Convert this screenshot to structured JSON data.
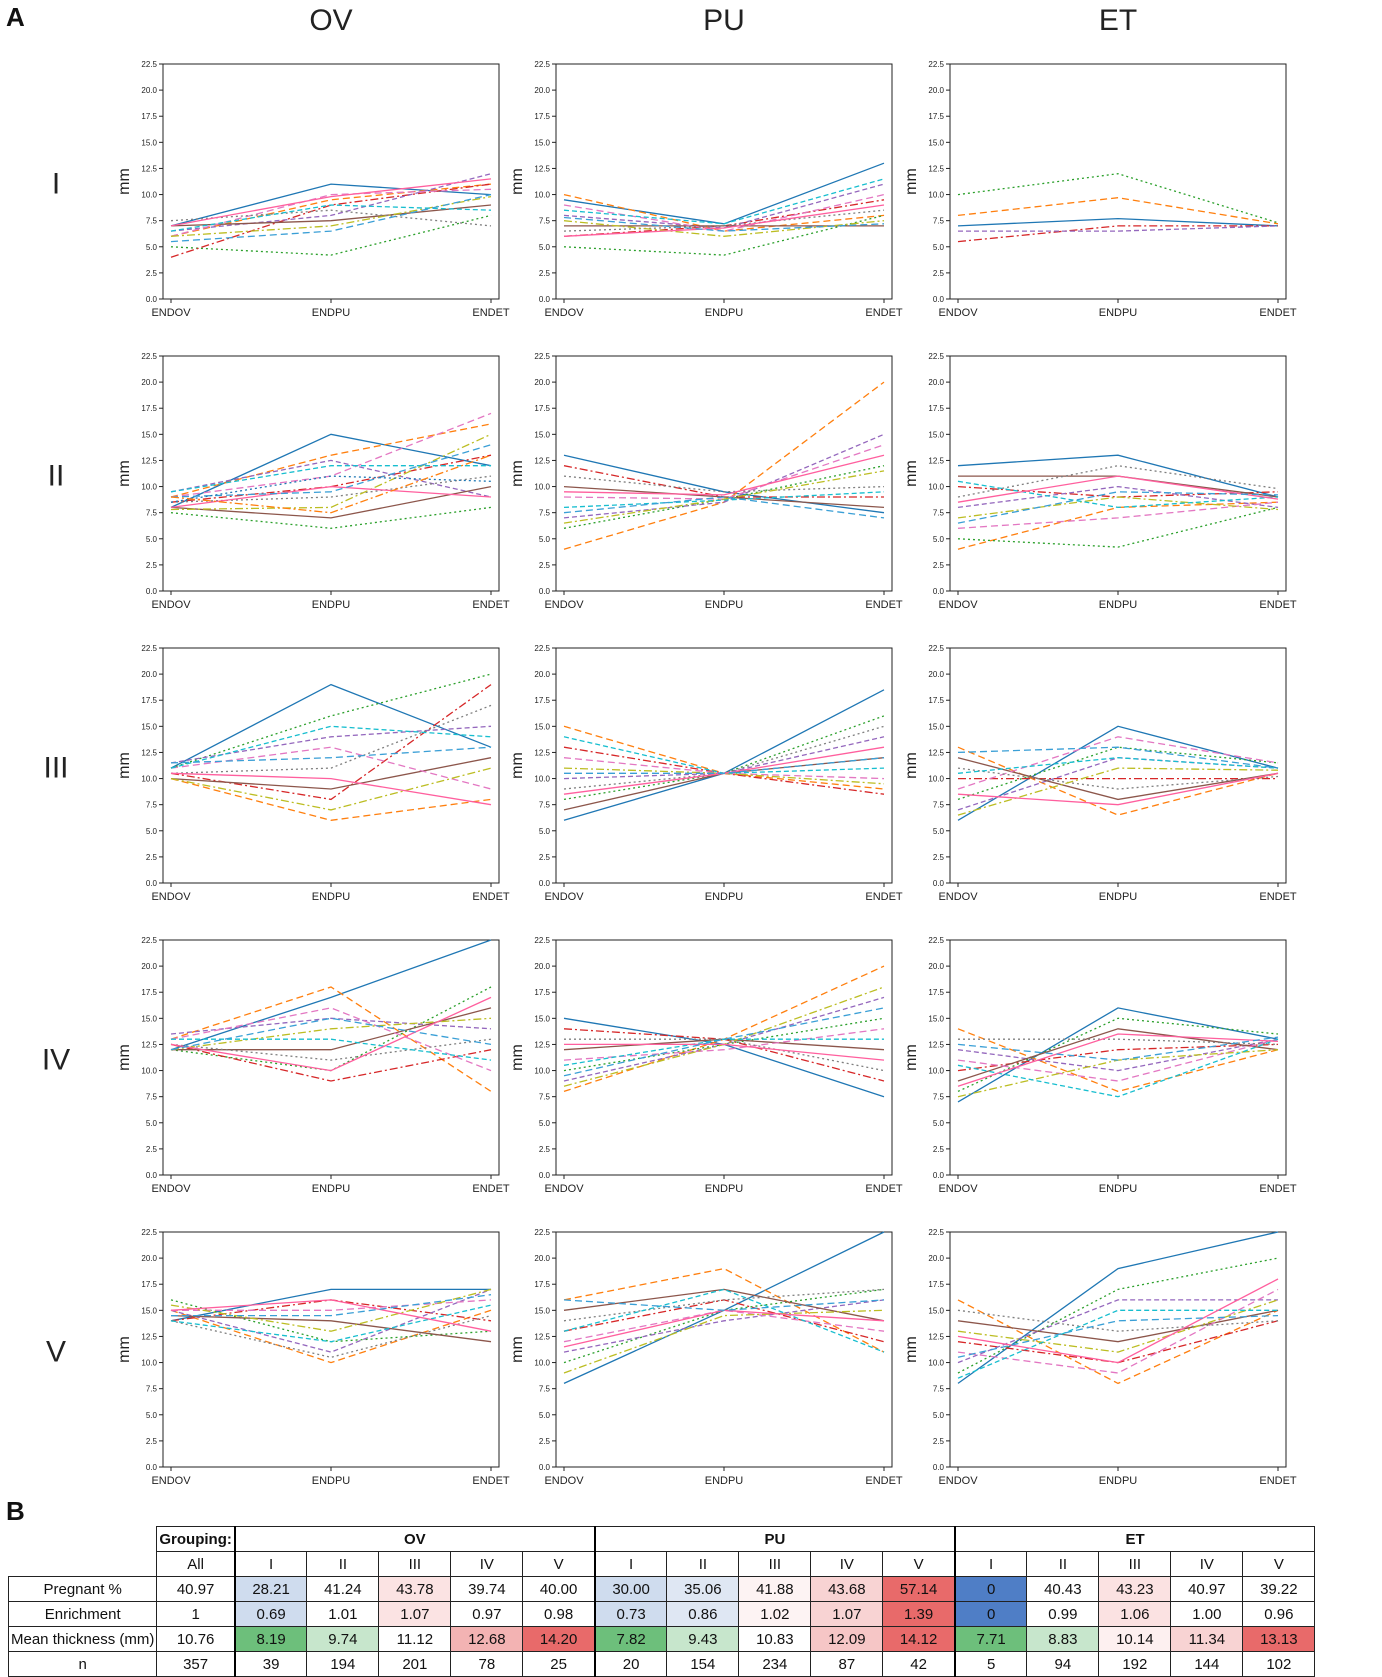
{
  "panel_a_label": "A",
  "panel_b_label": "B",
  "columns": [
    "OV",
    "PU",
    "ET"
  ],
  "rows": [
    "I",
    "II",
    "III",
    "IV",
    "V"
  ],
  "series_colors": [
    "#1f77b4",
    "#ff7f0e",
    "#2ca02c",
    "#d62728",
    "#9467bd",
    "#8c564b",
    "#e377c2",
    "#7f7f7f",
    "#bcbd22",
    "#17becf",
    "#ff5f9e",
    "#3a9fd6"
  ],
  "chart_data": {
    "type": "line",
    "description_of_layout": "grid",
    "x": [
      "ENDOV",
      "ENDPU",
      "ENDET"
    ],
    "ylabel": "mm",
    "ylim": [
      0,
      22.5
    ],
    "yticks": [
      "0.0",
      "2.5",
      "5.0",
      "7.5",
      "10.0",
      "12.5",
      "15.0",
      "17.5",
      "20.0",
      "22.5"
    ],
    "panels": [
      {
        "column": "OV",
        "row": "I",
        "series": [
          [
            7,
            11,
            10
          ],
          [
            6,
            9.5,
            11
          ],
          [
            5,
            4.2,
            8
          ],
          [
            4,
            9,
            11
          ],
          [
            6.5,
            8,
            12
          ],
          [
            7,
            7.5,
            9
          ],
          [
            6,
            10,
            10.5
          ],
          [
            7.5,
            8.5,
            7
          ],
          [
            6,
            7,
            9.8
          ],
          [
            6.5,
            9,
            8.5
          ],
          [
            7,
            9.8,
            11.5
          ],
          [
            5.5,
            6.5,
            10
          ]
        ]
      },
      {
        "column": "PU",
        "row": "I",
        "series": [
          [
            9.5,
            7.2,
            13
          ],
          [
            10,
            6.5,
            8
          ],
          [
            5,
            4.2,
            8
          ],
          [
            6,
            7,
            9.5
          ],
          [
            8,
            6.8,
            11
          ],
          [
            7,
            7,
            7
          ],
          [
            9,
            6.5,
            10
          ],
          [
            6.5,
            7,
            8.5
          ],
          [
            7.5,
            6,
            7.5
          ],
          [
            8.5,
            7.2,
            11.5
          ],
          [
            6,
            6.8,
            9
          ],
          [
            7.8,
            6.5,
            7.2
          ]
        ]
      },
      {
        "column": "ET",
        "row": "I",
        "series": [
          [
            7,
            7.7,
            7
          ],
          [
            8,
            9.7,
            7.2
          ],
          [
            10,
            12,
            7.3
          ],
          [
            5.5,
            7,
            7
          ],
          [
            6.5,
            6.5,
            7
          ]
        ]
      },
      {
        "column": "OV",
        "row": "II",
        "series": [
          [
            8,
            15,
            12
          ],
          [
            9,
            13,
            16
          ],
          [
            7.5,
            6,
            8
          ],
          [
            8.5,
            10,
            13
          ],
          [
            9.5,
            12.5,
            9
          ],
          [
            8,
            7,
            10
          ],
          [
            9,
            11,
            17
          ],
          [
            8.5,
            9,
            11
          ],
          [
            7.8,
            8,
            15
          ],
          [
            9.5,
            12,
            12
          ],
          [
            8,
            10,
            9
          ],
          [
            9,
            9.5,
            14
          ],
          [
            8.5,
            11,
            10.5
          ],
          [
            9,
            7.5,
            13
          ]
        ]
      },
      {
        "column": "PU",
        "row": "II",
        "series": [
          [
            13,
            9.5,
            7.5
          ],
          [
            4,
            8.5,
            20
          ],
          [
            6,
            8.8,
            12
          ],
          [
            12,
            9,
            9
          ],
          [
            7,
            8.5,
            15
          ],
          [
            10,
            9,
            8
          ],
          [
            9,
            8.8,
            14
          ],
          [
            11,
            9.5,
            10
          ],
          [
            6.5,
            8.8,
            11.5
          ],
          [
            8,
            8.7,
            9.5
          ],
          [
            9.5,
            9.2,
            13
          ],
          [
            7.5,
            9,
            7
          ]
        ]
      },
      {
        "column": "ET",
        "row": "II",
        "series": [
          [
            12,
            13,
            9
          ],
          [
            4,
            8,
            8.5
          ],
          [
            5,
            4.2,
            8
          ],
          [
            10,
            9,
            9.5
          ],
          [
            8,
            10,
            8
          ],
          [
            11,
            11,
            9
          ],
          [
            6,
            7,
            8.5
          ],
          [
            9,
            12,
            9.8
          ],
          [
            7,
            9,
            7.8
          ],
          [
            10.5,
            8,
            9
          ],
          [
            8.5,
            11,
            8.8
          ],
          [
            6.5,
            9.5,
            9.2
          ]
        ]
      },
      {
        "column": "OV",
        "row": "III",
        "series": [
          [
            11,
            19,
            13
          ],
          [
            10,
            6,
            8
          ],
          [
            11,
            16,
            20
          ],
          [
            10.5,
            8,
            19
          ],
          [
            11.5,
            14,
            15
          ],
          [
            10,
            9,
            12
          ],
          [
            11,
            13,
            9
          ],
          [
            10.5,
            11,
            17
          ],
          [
            10,
            7,
            11
          ],
          [
            11,
            15,
            14
          ],
          [
            10.5,
            10,
            7.5
          ],
          [
            11.5,
            12,
            13
          ]
        ]
      },
      {
        "column": "PU",
        "row": "III",
        "series": [
          [
            6,
            10.5,
            18.5
          ],
          [
            15,
            10.5,
            9
          ],
          [
            8,
            10.5,
            16
          ],
          [
            13,
            10.5,
            8.5
          ],
          [
            10,
            10.5,
            14
          ],
          [
            7,
            10.5,
            12
          ],
          [
            12,
            10.5,
            10
          ],
          [
            9,
            10.5,
            15
          ],
          [
            11,
            10.5,
            9.5
          ],
          [
            14,
            10.5,
            11
          ],
          [
            8.5,
            10.5,
            13
          ],
          [
            10.5,
            10.5,
            12
          ]
        ]
      },
      {
        "column": "ET",
        "row": "III",
        "series": [
          [
            6,
            15,
            11
          ],
          [
            13,
            6.5,
            10.5
          ],
          [
            8,
            13,
            11.5
          ],
          [
            10,
            10,
            10
          ],
          [
            7,
            12,
            11
          ],
          [
            12,
            8,
            10.5
          ],
          [
            9,
            14,
            11.5
          ],
          [
            11,
            9,
            10.2
          ],
          [
            6.5,
            11,
            10.8
          ],
          [
            10.5,
            12,
            11
          ],
          [
            8.5,
            7.5,
            10.5
          ],
          [
            12.5,
            13,
            11
          ]
        ]
      },
      {
        "column": "OV",
        "row": "IV",
        "series": [
          [
            12,
            17,
            23
          ],
          [
            13,
            18,
            8
          ],
          [
            12,
            10,
            18
          ],
          [
            12.5,
            9,
            12
          ],
          [
            13.5,
            15,
            14
          ],
          [
            12,
            12,
            16
          ],
          [
            13,
            16,
            10
          ],
          [
            12.5,
            11,
            13
          ],
          [
            12,
            14,
            15
          ],
          [
            13,
            13,
            11
          ],
          [
            12.5,
            10,
            17
          ],
          [
            12,
            15,
            12.5
          ]
        ]
      },
      {
        "column": "PU",
        "row": "IV",
        "series": [
          [
            15,
            12.5,
            7.5
          ],
          [
            8,
            13,
            20
          ],
          [
            10,
            12.5,
            15
          ],
          [
            14,
            13,
            9
          ],
          [
            9,
            12.5,
            17
          ],
          [
            12,
            13,
            12
          ],
          [
            11,
            12,
            14
          ],
          [
            13,
            13,
            10
          ],
          [
            8.5,
            12.5,
            18
          ],
          [
            10.5,
            13,
            13
          ],
          [
            12.5,
            12.5,
            11
          ],
          [
            9.5,
            13,
            16
          ]
        ]
      },
      {
        "column": "ET",
        "row": "IV",
        "series": [
          [
            7,
            16,
            13
          ],
          [
            14,
            8,
            12
          ],
          [
            8,
            15,
            13.5
          ],
          [
            10,
            12,
            12.5
          ],
          [
            12,
            10,
            13
          ],
          [
            9,
            14,
            12
          ],
          [
            11,
            9,
            13
          ],
          [
            13,
            13,
            12.5
          ],
          [
            7.5,
            11,
            12
          ],
          [
            10.5,
            7.5,
            13
          ],
          [
            8.5,
            13.5,
            12.8
          ],
          [
            12.5,
            11,
            13.2
          ]
        ]
      },
      {
        "column": "OV",
        "row": "V",
        "series": [
          [
            14,
            17,
            17
          ],
          [
            15,
            10,
            15
          ],
          [
            16,
            12,
            13
          ],
          [
            14,
            16,
            14
          ],
          [
            15,
            11,
            17
          ],
          [
            14.5,
            14,
            12
          ],
          [
            15,
            15,
            16
          ],
          [
            14,
            10.5,
            14.5
          ],
          [
            15.5,
            13,
            17
          ],
          [
            14,
            12,
            15.5
          ],
          [
            15,
            16,
            13
          ],
          [
            14.5,
            14.5,
            16.5
          ]
        ]
      },
      {
        "column": "PU",
        "row": "V",
        "series": [
          [
            8,
            15,
            23
          ],
          [
            16,
            19,
            11
          ],
          [
            10,
            15,
            17
          ],
          [
            13,
            16,
            12
          ],
          [
            11,
            14,
            16
          ],
          [
            15,
            17,
            14
          ],
          [
            12,
            15,
            13
          ],
          [
            14,
            16,
            17
          ],
          [
            9,
            14.5,
            15
          ],
          [
            13,
            17,
            11
          ],
          [
            11.5,
            15,
            14
          ],
          [
            16,
            15,
            16
          ]
        ]
      },
      {
        "column": "ET",
        "row": "V",
        "series": [
          [
            8,
            19,
            23
          ],
          [
            16,
            8,
            15
          ],
          [
            9,
            17,
            20
          ],
          [
            12,
            10,
            14
          ],
          [
            10,
            16,
            16
          ],
          [
            14,
            12,
            15
          ],
          [
            11,
            9,
            17
          ],
          [
            15,
            13,
            14
          ],
          [
            13,
            11,
            16
          ],
          [
            8.5,
            15,
            15
          ],
          [
            12.5,
            10,
            18
          ],
          [
            10.5,
            14,
            14.5
          ]
        ]
      }
    ],
    "table": {
      "grouping_label": "Grouping:",
      "group_names": [
        "OV",
        "PU",
        "ET"
      ],
      "header": [
        "All",
        "I",
        "II",
        "III",
        "IV",
        "V",
        "I",
        "II",
        "III",
        "IV",
        "V",
        "I",
        "II",
        "III",
        "IV",
        "V"
      ],
      "rows": [
        {
          "label": "Pregnant %",
          "values": [
            "40.97",
            "28.21",
            "41.24",
            "43.78",
            "39.74",
            "40.00",
            "30.00",
            "35.06",
            "41.88",
            "43.68",
            "57.14",
            "0",
            "40.43",
            "43.23",
            "40.97",
            "39.22"
          ]
        },
        {
          "label": "Enrichment",
          "values": [
            "1",
            "0.69",
            "1.01",
            "1.07",
            "0.97",
            "0.98",
            "0.73",
            "0.86",
            "1.02",
            "1.07",
            "1.39",
            "0",
            "0.99",
            "1.06",
            "1.00",
            "0.96"
          ]
        },
        {
          "label": "Mean thickness (mm)",
          "values": [
            "10.76",
            "8.19",
            "9.74",
            "11.12",
            "12.68",
            "14.20",
            "7.82",
            "9.43",
            "10.83",
            "12.09",
            "14.12",
            "7.71",
            "8.83",
            "10.14",
            "11.34",
            "13.13"
          ]
        },
        {
          "label": "n",
          "values": [
            "357",
            "39",
            "194",
            "201",
            "78",
            "25",
            "20",
            "154",
            "234",
            "87",
            "42",
            "5",
            "94",
            "192",
            "144",
            "102"
          ]
        }
      ],
      "cell_colors": [
        [
          "#ffffff",
          "#cfdcee",
          "#ffffff",
          "#fbe3e3",
          "#ffffff",
          "#ffffff",
          "#cfdcee",
          "#dfe7f3",
          "#fdf3f3",
          "#f8d3d3",
          "#e86a6a",
          "#4f7ec6",
          "#ffffff",
          "#fbe2e2",
          "#ffffff",
          "#ffffff"
        ],
        [
          "#ffffff",
          "#cfdcee",
          "#ffffff",
          "#fbe3e3",
          "#ffffff",
          "#ffffff",
          "#cfdcee",
          "#dfe7f3",
          "#fdf3f3",
          "#f8d3d3",
          "#e86a6a",
          "#4f7ec6",
          "#ffffff",
          "#fbe2e2",
          "#ffffff",
          "#ffffff"
        ],
        [
          "#ffffff",
          "#6dbf7b",
          "#c7e6cc",
          "#ffffff",
          "#f3b3b3",
          "#e86a6a",
          "#6dbf7b",
          "#c7e6cc",
          "#ffffff",
          "#f6c6c6",
          "#e86a6a",
          "#6dbf7b",
          "#c7e6cc",
          "#fdf0f0",
          "#f8d3d3",
          "#e86a6a"
        ],
        [
          "#ffffff",
          "#ffffff",
          "#ffffff",
          "#ffffff",
          "#ffffff",
          "#ffffff",
          "#ffffff",
          "#ffffff",
          "#ffffff",
          "#ffffff",
          "#ffffff",
          "#ffffff",
          "#ffffff",
          "#ffffff",
          "#ffffff",
          "#ffffff"
        ]
      ]
    }
  }
}
